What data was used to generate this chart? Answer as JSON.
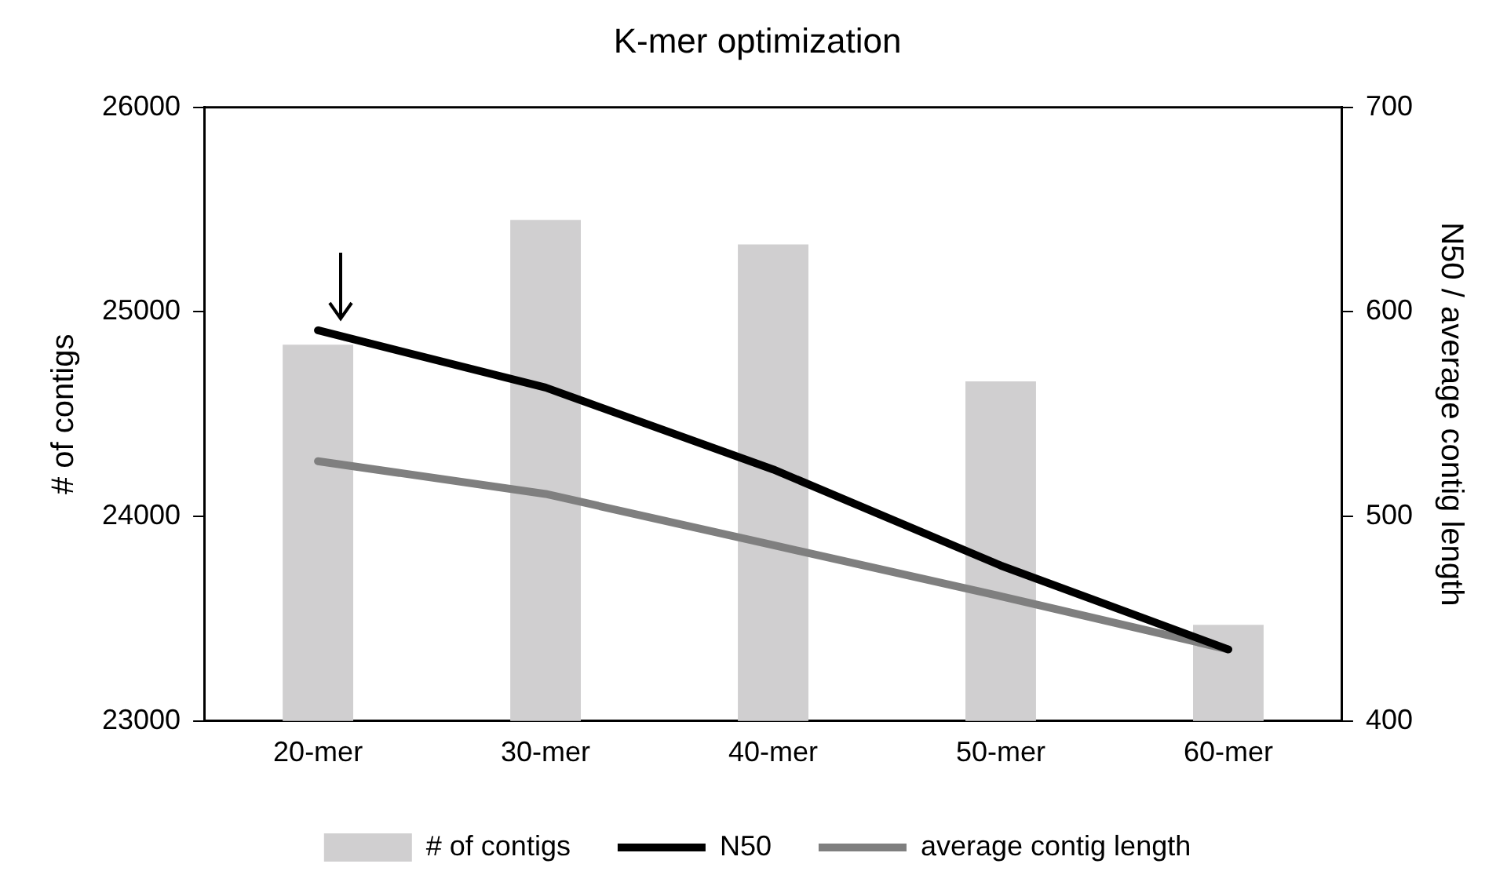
{
  "chart_data": {
    "type": "bar",
    "title": "K-mer optimization",
    "ylabel": "# of contigs",
    "y2label": "N50 / average contig length",
    "categories": [
      "20-mer",
      "30-mer",
      "40-mer",
      "50-mer",
      "60-mer"
    ],
    "series": [
      {
        "name": "# of contigs",
        "color": "#d0cfd0",
        "values": [
          24840,
          25450,
          25330,
          24660,
          23470
        ]
      },
      {
        "name": "N50",
        "type": "line",
        "axis": "y2",
        "color": "#000000",
        "values": [
          591,
          563,
          523,
          476,
          435
        ]
      },
      {
        "name": "average contig length",
        "type": "line",
        "axis": "y2",
        "color": "#7f7f7f",
        "values": [
          527,
          511,
          486,
          461,
          435
        ]
      }
    ],
    "ylim": [
      23000,
      26000
    ],
    "yticks": [
      23000,
      24000,
      25000,
      26000
    ],
    "y2lim": [
      400,
      700
    ],
    "y2ticks": [
      400,
      500,
      600,
      700
    ],
    "legend": "bottom",
    "grid": false,
    "marker": "none",
    "line_style": "solid"
  }
}
